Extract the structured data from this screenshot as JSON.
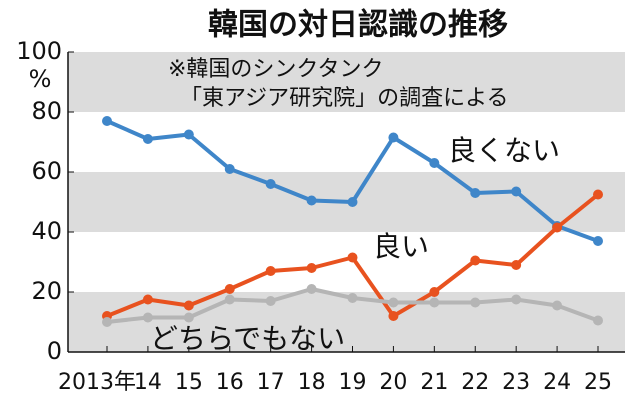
{
  "chart_data": {
    "type": "line",
    "title": "韓国の対日認識の推移",
    "source_lines": [
      "※韓国のシンクタンク",
      "「東アジア研究院」の調査による"
    ],
    "y_unit": "%",
    "categories": [
      "2013年",
      "14",
      "15",
      "16",
      "17",
      "18",
      "19",
      "20",
      "21",
      "22",
      "23",
      "24",
      "25"
    ],
    "series": [
      {
        "name": "良くない",
        "color": "#3f86c9",
        "values": [
          77,
          71,
          72.5,
          61,
          56,
          50.5,
          50,
          71.5,
          63,
          53,
          53.5,
          42,
          37
        ]
      },
      {
        "name": "良い",
        "color": "#e8521f",
        "values": [
          12,
          17.5,
          15.5,
          21,
          27,
          28,
          31.5,
          12,
          20,
          30.5,
          29,
          41.5,
          52.5
        ]
      },
      {
        "name": "どちらでもない",
        "color": "#b5b5b5",
        "values": [
          10,
          11.5,
          11.5,
          17.5,
          17,
          21,
          18,
          16.5,
          16.5,
          16.5,
          17.5,
          15.5,
          10.5
        ]
      }
    ],
    "ylim": [
      0,
      100
    ],
    "yticks": [
      0,
      20,
      40,
      60,
      80,
      100
    ],
    "bands": true
  }
}
